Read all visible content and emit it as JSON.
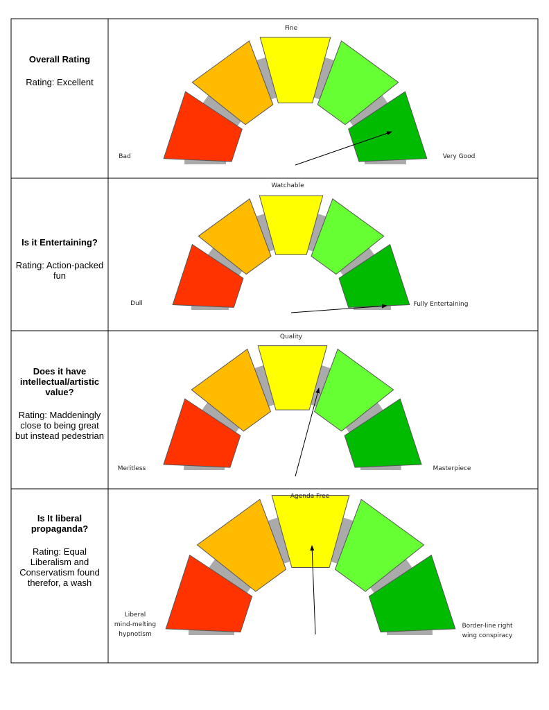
{
  "rows": [
    {
      "question": "Overall Rating",
      "rating": "Rating: Excellent",
      "gauge": {
        "top": "Fine",
        "left": [
          "Bad"
        ],
        "right": [
          "Very Good"
        ]
      }
    },
    {
      "question": "Is it Entertaining?",
      "rating": "Rating: Action-packed fun",
      "gauge": {
        "top": "Watchable",
        "left": [
          "Dull"
        ],
        "right": [
          "Fully Entertaining"
        ]
      }
    },
    {
      "question": "Does it have intellectual/artistic value?",
      "rating": "Rating: Maddeningly close to being great but instead pedestrian",
      "gauge": {
        "top": "Quality",
        "left": [
          "Meritless"
        ],
        "right": [
          "Masterpiece"
        ]
      }
    },
    {
      "question": "Is It liberal propaganda?",
      "rating": "Rating: Equal Liberalism and Conservatism found therefor, a wash",
      "gauge": {
        "top": "Agenda Free",
        "left": [
          "Liberal",
          "mind-melting",
          "hypnotism"
        ],
        "right": [
          "Border-line right",
          "wing conspiracy"
        ]
      }
    }
  ]
}
